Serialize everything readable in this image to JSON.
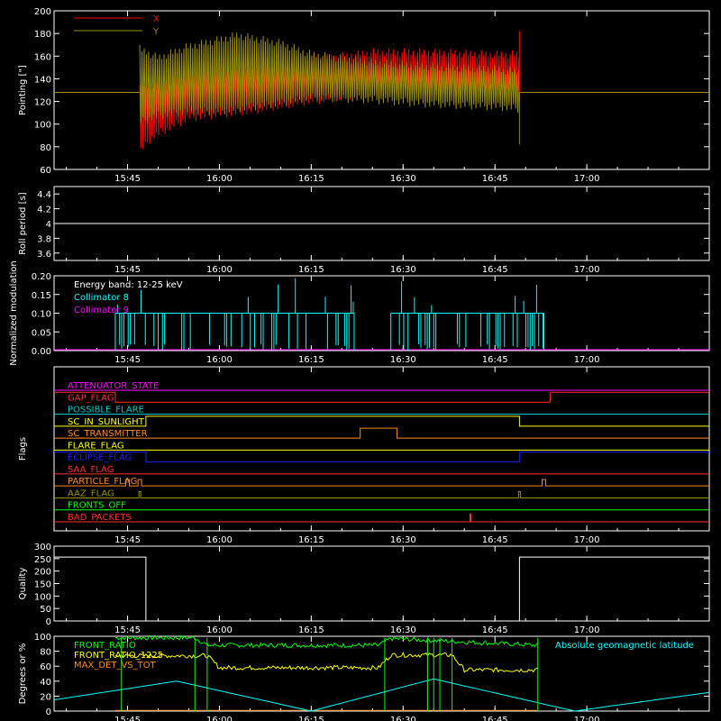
{
  "colors": {
    "background": "#000000",
    "axes": "#ffffff",
    "x_red": "#ff0000",
    "y_olive": "#9a9000",
    "cyan": "#00ffff",
    "magenta": "#ff00ff",
    "bright_green": "#00ff00",
    "yellow": "#ffff00",
    "orange": "#ff8c1a",
    "blue": "#2020ff",
    "flag_teal": "#00c8c8",
    "flag_red": "#ff3030"
  },
  "time_ticks": [
    "15:45",
    "16:00",
    "16:15",
    "16:30",
    "16:45",
    "17:00"
  ],
  "chart_data": [
    {
      "type": "line",
      "id": "pointing",
      "ylabel": "Pointing [\"]",
      "ylim": [
        60,
        200
      ],
      "yticks": [
        60,
        80,
        100,
        120,
        140,
        160,
        180,
        200
      ],
      "xlim": [
        "15:33",
        "17:20"
      ],
      "legend": [
        "X",
        "Y"
      ],
      "series": [
        {
          "name": "X",
          "color": "#ff0000",
          "x": [
            "15:47",
            "15:49",
            "15:55",
            "16:05",
            "16:15",
            "16:25",
            "16:35",
            "16:45",
            "16:49"
          ],
          "upper": [
            138,
            138,
            150,
            152,
            160,
            167,
            167,
            165,
            165
          ],
          "lower": [
            72,
            85,
            102,
            108,
            117,
            124,
            126,
            126,
            126
          ]
        },
        {
          "name": "Y",
          "color": "#9a9000",
          "x": [
            "15:33",
            "15:47",
            "15:50",
            "15:55",
            "16:00",
            "16:03",
            "16:10",
            "16:15",
            "16:25",
            "16:35",
            "16:45",
            "16:49",
            "17:20"
          ],
          "upper": [
            128,
            170,
            162,
            172,
            178,
            182,
            175,
            165,
            158,
            154,
            152,
            150,
            128
          ],
          "lower": [
            128,
            98,
            104,
            108,
            108,
            110,
            115,
            120,
            118,
            114,
            112,
            110,
            128
          ]
        }
      ]
    },
    {
      "type": "line",
      "id": "roll",
      "ylabel": "Roll period [s]",
      "ylim": [
        3.5,
        4.5
      ],
      "yticks": [
        3.6,
        3.8,
        4.0,
        4.2,
        4.4
      ],
      "series": [
        {
          "x": [
            "15:33",
            "17:20"
          ],
          "y": [
            4.0,
            4.0
          ],
          "color": "#ffffff"
        }
      ]
    },
    {
      "type": "bar",
      "id": "modulation",
      "ylabel": "Normalized modulation",
      "ylim": [
        0,
        0.2
      ],
      "yticks": [
        "0.00",
        "0.05",
        "0.10",
        "0.15",
        "0.20"
      ],
      "annotation": "Energy band: 12-25 keV",
      "legend": [
        "Collimator 8",
        "Collimator 9"
      ],
      "segments": [
        {
          "start": "15:43",
          "end": "16:22",
          "level": 0.1
        },
        {
          "start": "16:28",
          "end": "16:53",
          "level": 0.1
        }
      ],
      "series": [
        {
          "name": "Collimator 8",
          "color": "#00ffff"
        },
        {
          "name": "Collimator 9",
          "color": "#ff00ff"
        }
      ]
    },
    {
      "type": "line",
      "id": "flags",
      "ylabel": "Flags",
      "flags": [
        {
          "label": "ATTENUATOR_STATE",
          "color": "#ff00ff",
          "transitions": []
        },
        {
          "label": "GAP_FLAG",
          "color": "#ff3030",
          "transitions": [
            [
              "15:43",
              "down"
            ],
            [
              "16:54",
              "up"
            ]
          ]
        },
        {
          "label": "POSSIBLE_FLARE",
          "color": "#00c8c8",
          "transitions": []
        },
        {
          "label": "SC_IN_SUNLIGHT",
          "color": "#ffff00",
          "transitions": [
            [
              "15:48",
              "up"
            ],
            [
              "16:49",
              "down"
            ]
          ]
        },
        {
          "label": "SC_TRANSMITTER",
          "color": "#ff8c1a",
          "transitions": [
            [
              "16:23",
              "up"
            ],
            [
              "16:29",
              "down"
            ]
          ]
        },
        {
          "label": "FLARE_FLAG",
          "color": "#ffff00",
          "transitions": []
        },
        {
          "label": "ECLIPSE_FLAG",
          "color": "#2020ff",
          "transitions": [
            [
              "15:48",
              "down"
            ],
            [
              "16:49",
              "up"
            ]
          ]
        },
        {
          "label": "SAA_FLAG",
          "color": "#ff3030",
          "transitions": []
        },
        {
          "label": "PARTICLE_FLAG",
          "color": "#ff8c1a",
          "transitions": [
            [
              "15:45",
              "pulse"
            ],
            [
              "15:47",
              "pulse"
            ],
            [
              "16:53",
              "pulse"
            ]
          ]
        },
        {
          "label": "AAZ_FLAG",
          "color": "#9a9000",
          "transitions": [
            [
              "15:47",
              "pulse"
            ],
            [
              "16:49",
              "pulse"
            ]
          ]
        },
        {
          "label": "FRONTS_OFF",
          "color": "#00ff00",
          "transitions": []
        },
        {
          "label": "BAD_PACKETS",
          "color": "#ff3030",
          "transitions": [
            [
              "16:41",
              "spike"
            ]
          ]
        }
      ]
    },
    {
      "type": "line",
      "id": "quality",
      "ylabel": "Quality",
      "ylim": [
        0,
        300
      ],
      "yticks": [
        0,
        50,
        100,
        150,
        200,
        250,
        300
      ],
      "series": [
        {
          "x": [
            "15:33",
            "15:48",
            "15:48",
            "16:49",
            "16:49",
            "17:20"
          ],
          "y": [
            256,
            256,
            0,
            0,
            256,
            256
          ],
          "color": "#ffffff"
        }
      ]
    },
    {
      "type": "line",
      "id": "ratios",
      "ylabel": "Degrees or %",
      "ylim": [
        0,
        100
      ],
      "yticks": [
        0,
        20,
        40,
        60,
        80,
        100
      ],
      "legend": [
        "FRONT_RATIO",
        "FRONT_RATIO_1225",
        "MAX_DET_VS_TOT"
      ],
      "annotation": "Absolute geomagnetic latitude",
      "series": [
        {
          "name": "FRONT_RATIO",
          "color": "#00ff00",
          "x": [
            "15:43",
            "15:56",
            "15:58",
            "16:26",
            "16:28",
            "16:52"
          ],
          "y": [
            98,
            98,
            88,
            88,
            97,
            88
          ]
        },
        {
          "name": "FRONT_RATIO_1225",
          "color": "#ffff00",
          "x": [
            "15:43",
            "15:58",
            "16:00",
            "16:26",
            "16:28",
            "16:38",
            "16:40",
            "16:52"
          ],
          "y": [
            74,
            74,
            58,
            58,
            75,
            75,
            55,
            55
          ]
        },
        {
          "name": "MAX_DET_VS_TOT",
          "color": "#ff8c1a",
          "x": [
            "15:43",
            "16:52"
          ],
          "y": [
            1,
            1
          ]
        },
        {
          "name": "Absolute geomagnetic latitude",
          "color": "#00ffff",
          "x": [
            "15:33",
            "15:53",
            "16:15",
            "16:35",
            "16:58",
            "17:20"
          ],
          "y": [
            15,
            40,
            0,
            43,
            0,
            25
          ]
        }
      ]
    }
  ]
}
